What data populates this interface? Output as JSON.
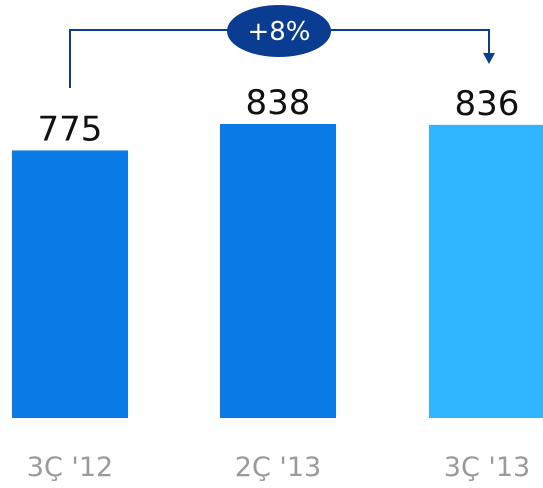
{
  "chart_data": {
    "type": "bar",
    "categories": [
      "3Ç '12",
      "2Ç '13",
      "3Ç '13"
    ],
    "series": [
      {
        "values": [
          775,
          838,
          836
        ]
      }
    ],
    "data_labels": [
      "775",
      "838",
      "836"
    ],
    "ylim": [
      0,
      838
    ],
    "grid": false,
    "annotation": {
      "text": "+8%",
      "from_category": "3Ç '12",
      "to_category": "3Ç '13"
    },
    "colors": {
      "bar": "#0a7ae6",
      "highlight_bar": "#2fb6ff",
      "annotation": "#0a3d91",
      "value_text": "#111111",
      "category_text": "#9a9a9a"
    }
  }
}
